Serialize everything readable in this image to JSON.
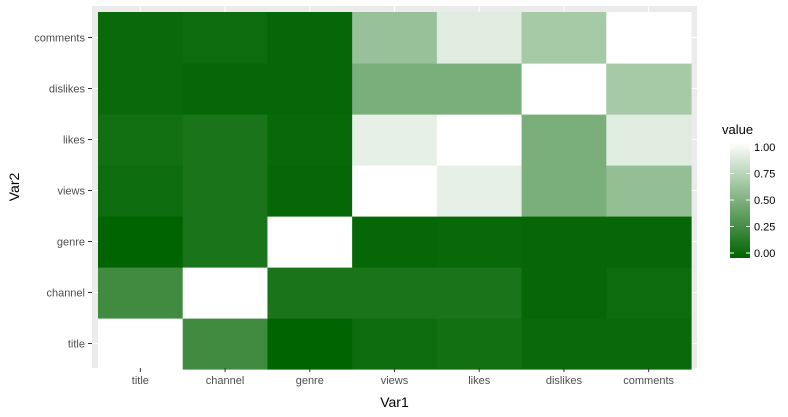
{
  "chart_data": {
    "type": "heatmap",
    "title": "",
    "xlabel": "Var1",
    "ylabel": "Var2",
    "x": [
      "title",
      "channel",
      "genre",
      "views",
      "likes",
      "dislikes",
      "comments"
    ],
    "y": [
      "title",
      "channel",
      "genre",
      "views",
      "likes",
      "dislikes",
      "comments"
    ],
    "values": [
      [
        1.0,
        0.25,
        0.0,
        0.05,
        0.07,
        0.04,
        0.04
      ],
      [
        0.25,
        1.0,
        0.1,
        0.1,
        0.1,
        0.02,
        0.05
      ],
      [
        0.0,
        0.1,
        1.0,
        0.02,
        0.03,
        0.02,
        0.02
      ],
      [
        0.05,
        0.1,
        0.02,
        1.0,
        0.9,
        0.48,
        0.58
      ],
      [
        0.07,
        0.1,
        0.03,
        0.9,
        1.0,
        0.48,
        0.88
      ],
      [
        0.04,
        0.02,
        0.02,
        0.48,
        0.48,
        1.0,
        0.65
      ],
      [
        0.04,
        0.05,
        0.02,
        0.6,
        0.88,
        0.65,
        1.0
      ]
    ],
    "value_range": [
      0,
      1
    ],
    "color_low": "#006400",
    "color_high": "#ffffff",
    "panel_background": "#ebebeb",
    "grid": true,
    "legend": {
      "title": "value",
      "position": "right",
      "ticks": [
        {
          "value": 0.0,
          "label": "0.00"
        },
        {
          "value": 0.25,
          "label": "0.25"
        },
        {
          "value": 0.5,
          "label": "0.50"
        },
        {
          "value": 0.75,
          "label": "0.75"
        },
        {
          "value": 1.0,
          "label": "1.00"
        }
      ]
    }
  }
}
